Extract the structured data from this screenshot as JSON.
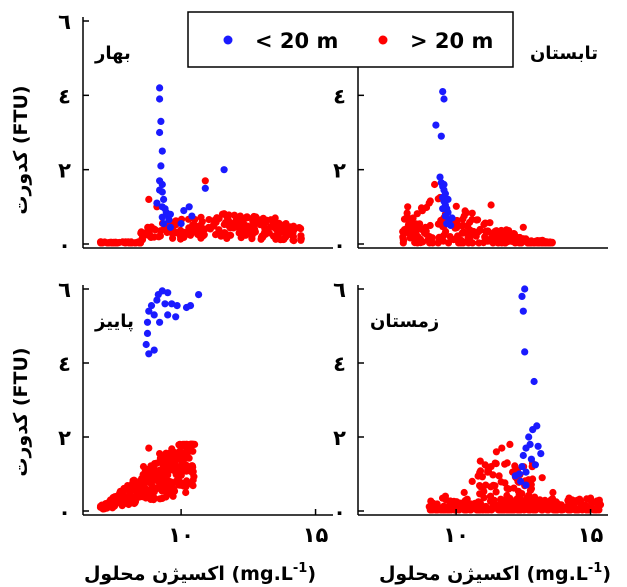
{
  "chart_data": {
    "type": "scatter",
    "legend": {
      "placement": "top-center",
      "entries": [
        {
          "label": "< 20 m",
          "color": "#1a1aff"
        },
        {
          "label": "> 20 m",
          "color": "#ff0000"
        }
      ]
    },
    "y_axis": {
      "label": "کدورت (FTU)",
      "range": [
        0,
        6
      ],
      "ticks": [
        {
          "value": 0,
          "label": "۰"
        },
        {
          "value": 2,
          "label": "۲"
        },
        {
          "value": 4,
          "label": "٤"
        },
        {
          "value": 6,
          "label": "٦"
        }
      ]
    },
    "x_axis": {
      "label": "اکسیژن محلول (mg.L-1)",
      "label_prefix": "اکسیژن محلول ",
      "label_unit": "(mg.L",
      "label_sup": "-1",
      "label_close": ")",
      "range": [
        6.5,
        15.5
      ],
      "ticks": [
        {
          "value": 10,
          "label": "۱۰"
        },
        {
          "value": 15,
          "label": "۱۵"
        }
      ]
    },
    "panels": [
      {
        "name": "بهار",
        "label_side": "left",
        "deep": [
          [
            9.2,
            4.2
          ],
          [
            9.2,
            3.9
          ],
          [
            9.25,
            3.3
          ],
          [
            9.2,
            3.0
          ],
          [
            9.3,
            2.5
          ],
          [
            9.25,
            2.1
          ],
          [
            9.2,
            1.7
          ],
          [
            9.3,
            1.6
          ],
          [
            9.3,
            1.4
          ],
          [
            9.35,
            1.2
          ],
          [
            9.3,
            1.0
          ],
          [
            9.4,
            0.95
          ],
          [
            9.45,
            0.85
          ],
          [
            9.5,
            0.78
          ],
          [
            9.3,
            0.72
          ],
          [
            9.2,
            1.45
          ],
          [
            9.1,
            1.1
          ],
          [
            9.6,
            0.8
          ],
          [
            11.6,
            2.0
          ],
          [
            10.9,
            1.5
          ],
          [
            10.3,
            1.0
          ],
          [
            10.1,
            0.9
          ],
          [
            10.4,
            0.75
          ],
          [
            10.0,
            0.55
          ],
          [
            9.55,
            0.65
          ],
          [
            9.35,
            0.55
          ],
          [
            9.6,
            0.45
          ]
        ],
        "shallow_seed": [
          [
            8.8,
            1.2
          ],
          [
            10.9,
            1.7
          ],
          [
            9.1,
            1.0
          ],
          [
            9.5,
            0.8
          ],
          [
            12.2,
            0.75
          ],
          [
            13.5,
            0.7
          ],
          [
            9.0,
            0.4
          ],
          [
            9.6,
            0.5
          ],
          [
            13.9,
            0.55
          ],
          [
            11.2,
            0.5
          ]
        ]
      },
      {
        "name": "تابستان",
        "label_side": "right",
        "deep": [
          [
            9.5,
            4.1
          ],
          [
            9.55,
            3.9
          ],
          [
            9.25,
            3.2
          ],
          [
            9.45,
            2.9
          ],
          [
            9.4,
            1.8
          ],
          [
            9.45,
            1.65
          ],
          [
            9.5,
            1.55
          ],
          [
            9.55,
            1.45
          ],
          [
            9.6,
            1.35
          ],
          [
            9.5,
            1.25
          ],
          [
            9.55,
            1.15
          ],
          [
            9.6,
            1.05
          ],
          [
            9.65,
            0.95
          ],
          [
            9.7,
            0.85
          ],
          [
            9.6,
            0.75
          ],
          [
            9.75,
            0.65
          ],
          [
            9.65,
            0.55
          ],
          [
            9.8,
            0.5
          ],
          [
            9.55,
            1.6
          ],
          [
            9.7,
            1.2
          ],
          [
            9.5,
            0.95
          ],
          [
            9.85,
            0.7
          ]
        ],
        "shallow_seed": [
          [
            9.2,
            1.6
          ],
          [
            9.4,
            1.25
          ],
          [
            9.0,
            1.1
          ],
          [
            8.2,
            1.0
          ],
          [
            9.6,
            0.8
          ],
          [
            11.3,
            1.05
          ],
          [
            10.8,
            0.65
          ],
          [
            8.4,
            0.7
          ],
          [
            9.9,
            0.6
          ],
          [
            12.5,
            0.45
          ],
          [
            10.3,
            0.3
          ]
        ]
      },
      {
        "name": "پاییز",
        "label_side": "left",
        "deep": [
          [
            9.15,
            5.85
          ],
          [
            9.3,
            5.95
          ],
          [
            9.5,
            5.9
          ],
          [
            9.1,
            5.7
          ],
          [
            9.4,
            5.6
          ],
          [
            9.65,
            5.6
          ],
          [
            9.85,
            5.55
          ],
          [
            10.2,
            5.5
          ],
          [
            8.9,
            5.55
          ],
          [
            9.0,
            5.3
          ],
          [
            8.8,
            5.4
          ],
          [
            10.35,
            5.55
          ],
          [
            10.65,
            5.85
          ],
          [
            9.2,
            5.1
          ],
          [
            8.75,
            5.1
          ],
          [
            8.7,
            4.5
          ],
          [
            8.75,
            4.8
          ],
          [
            9.0,
            4.35
          ],
          [
            8.8,
            4.25
          ],
          [
            9.5,
            5.3
          ],
          [
            9.8,
            5.25
          ]
        ],
        "shallow_seed": [
          [
            8.8,
            1.7
          ],
          [
            9.2,
            1.55
          ],
          [
            9.6,
            1.45
          ],
          [
            10.1,
            1.4
          ],
          [
            8.6,
            1.2
          ],
          [
            8.2,
            0.7
          ],
          [
            7.7,
            0.3
          ],
          [
            7.2,
            0.2
          ]
        ]
      },
      {
        "name": "زمستان",
        "label_side": "left",
        "deep": [
          [
            12.55,
            6.0
          ],
          [
            12.45,
            5.8
          ],
          [
            12.5,
            5.4
          ],
          [
            12.55,
            4.3
          ],
          [
            12.9,
            3.5
          ],
          [
            13.0,
            2.3
          ],
          [
            12.85,
            2.2
          ],
          [
            12.7,
            2.0
          ],
          [
            12.75,
            1.8
          ],
          [
            12.6,
            1.7
          ],
          [
            13.05,
            1.75
          ],
          [
            13.15,
            1.55
          ],
          [
            12.5,
            1.5
          ],
          [
            12.8,
            1.4
          ],
          [
            12.95,
            1.25
          ],
          [
            12.45,
            1.2
          ],
          [
            12.6,
            1.05
          ],
          [
            12.35,
            1.0
          ],
          [
            12.4,
            0.8
          ],
          [
            12.2,
            0.95
          ],
          [
            12.6,
            0.7
          ]
        ],
        "shallow_seed": [
          [
            11.7,
            1.7
          ],
          [
            12.0,
            1.8
          ],
          [
            11.5,
            1.6
          ],
          [
            11.9,
            1.3
          ],
          [
            12.1,
            1.05
          ],
          [
            11.3,
            1.2
          ],
          [
            10.9,
            1.35
          ],
          [
            11.6,
            0.95
          ],
          [
            12.3,
            0.8
          ],
          [
            13.2,
            0.9
          ],
          [
            10.6,
            0.8
          ],
          [
            11.1,
            0.7
          ],
          [
            12.8,
            0.6
          ],
          [
            13.6,
            0.5
          ],
          [
            14.2,
            0.35
          ],
          [
            10.3,
            0.5
          ],
          [
            9.6,
            0.4
          ],
          [
            15.0,
            0.35
          ]
        ]
      }
    ]
  }
}
